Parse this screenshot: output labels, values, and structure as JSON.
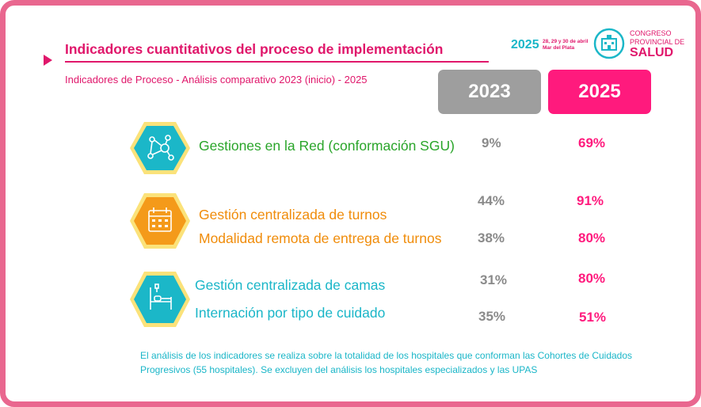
{
  "header": {
    "title": "Indicadores cuantitativos del proceso de implementación",
    "subtitle": "Indicadores de Proceso - Análisis comparativo 2023 (inicio) - 2025"
  },
  "logo": {
    "year": "2025",
    "dates_line1": "28, 29 y 30 de abril",
    "dates_line2": "Mar del Plata",
    "line1": "CONGRESO",
    "line2": "PROVINCIAL DE",
    "line3": "SALUD",
    "icon": "hospital-building-icon"
  },
  "columns": {
    "year_a": "2023",
    "year_b": "2025"
  },
  "groups": [
    {
      "icon": "network-nodes-icon",
      "color": "#2aa52a",
      "hex_fill": "#1bb7c8",
      "indicators": [
        {
          "label": "Gestiones en la Red (conformación SGU)",
          "v2023": "9%",
          "v2025": "69%"
        }
      ]
    },
    {
      "icon": "calendar-icon",
      "color": "#f08c0a",
      "hex_fill": "#f49a1a",
      "indicators": [
        {
          "label": "Gestión centralizada de turnos",
          "v2023": "44%",
          "v2025": "91%"
        },
        {
          "label": "Modalidad remota de entrega de turnos",
          "v2023": "38%",
          "v2025": "80%"
        }
      ]
    },
    {
      "icon": "hospital-bed-icon",
      "color": "#1ab6c8",
      "hex_fill": "#1bb7c8",
      "indicators": [
        {
          "label": "Gestión centralizada de camas",
          "v2023": "31%",
          "v2025": "80%"
        },
        {
          "label": "Internación por tipo de  cuidado",
          "v2023": "35%",
          "v2025": "51%"
        }
      ]
    }
  ],
  "footnote": "El análisis de los indicadores se realiza sobre la totalidad de los hospitales que conforman las Cohortes de Cuidados Progresivos (55 hospitales). Se excluyen del análisis los hospitales especializados y las UPAS"
}
